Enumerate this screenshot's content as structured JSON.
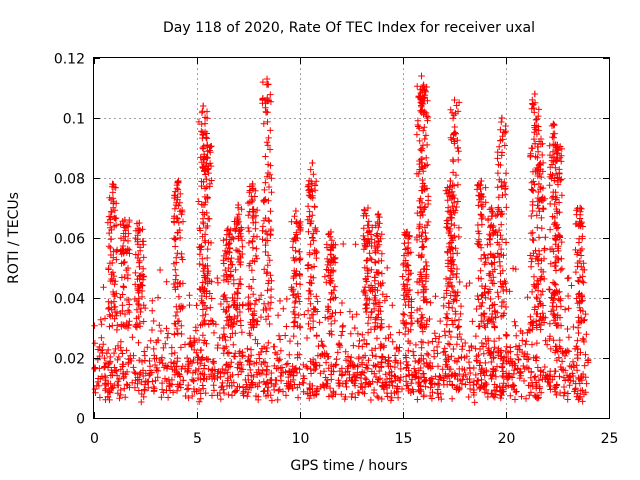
{
  "chart_data": {
    "type": "scatter",
    "title": "Day 118 of 2020, Rate Of TEC Index for receiver uxal",
    "xlabel": "GPS time / hours",
    "ylabel": "ROTI / TECUs",
    "xlim": [
      0,
      25
    ],
    "ylim": [
      0,
      0.12
    ],
    "xticks": [
      "0",
      "5",
      "10",
      "15",
      "20",
      "25"
    ],
    "yticks": [
      "0",
      "0.02",
      "0.04",
      "0.06",
      "0.08",
      "0.1",
      "0.12"
    ],
    "grid": true,
    "marker": "+",
    "color": "#ff0000",
    "data_range_hours": [
      0,
      24
    ],
    "baseline_band": [
      0.005,
      0.03
    ],
    "peaks": [
      {
        "x": 0.9,
        "y": 0.078
      },
      {
        "x": 1.5,
        "y": 0.066
      },
      {
        "x": 2.2,
        "y": 0.065
      },
      {
        "x": 4.1,
        "y": 0.079
      },
      {
        "x": 5.3,
        "y": 0.104
      },
      {
        "x": 5.5,
        "y": 0.091
      },
      {
        "x": 6.5,
        "y": 0.063
      },
      {
        "x": 7.0,
        "y": 0.071
      },
      {
        "x": 7.7,
        "y": 0.078
      },
      {
        "x": 8.4,
        "y": 0.113
      },
      {
        "x": 9.8,
        "y": 0.069
      },
      {
        "x": 10.6,
        "y": 0.085
      },
      {
        "x": 11.5,
        "y": 0.062
      },
      {
        "x": 13.3,
        "y": 0.07
      },
      {
        "x": 13.8,
        "y": 0.068
      },
      {
        "x": 15.2,
        "y": 0.062
      },
      {
        "x": 15.9,
        "y": 0.114
      },
      {
        "x": 16.0,
        "y": 0.111
      },
      {
        "x": 17.3,
        "y": 0.079
      },
      {
        "x": 17.5,
        "y": 0.106
      },
      {
        "x": 18.8,
        "y": 0.079
      },
      {
        "x": 19.3,
        "y": 0.07
      },
      {
        "x": 19.8,
        "y": 0.1
      },
      {
        "x": 21.4,
        "y": 0.108
      },
      {
        "x": 21.7,
        "y": 0.093
      },
      {
        "x": 22.3,
        "y": 0.098
      },
      {
        "x": 22.5,
        "y": 0.091
      },
      {
        "x": 23.6,
        "y": 0.07
      }
    ]
  }
}
